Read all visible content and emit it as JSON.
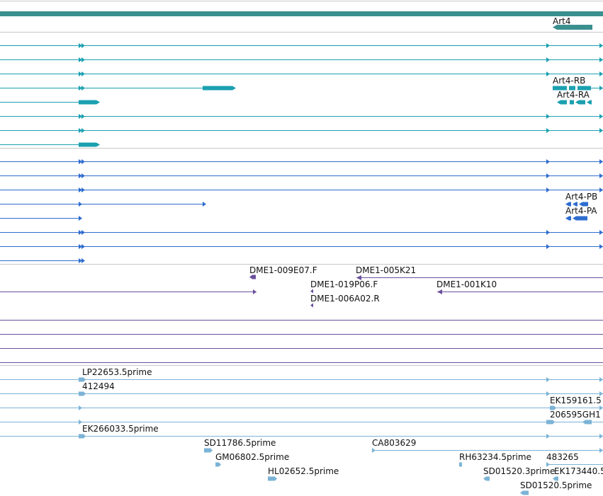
{
  "colors": {
    "gene": "#3a8f8f",
    "transcript_teal": "#1ba0b0",
    "transcript_blue": "#2f6ccf",
    "primer": "#6a4f9c",
    "est": "#7bb3d6",
    "separator": "#c8c8c8"
  },
  "gene_track": {
    "label": "Art4"
  },
  "transcript_tracks": {
    "teal_labels": [
      "Art4-RB",
      "Art4-RA"
    ],
    "blue_labels": [
      "Art4-PB",
      "Art4-PA"
    ]
  },
  "primer_track": {
    "labels": [
      "DME1-009E07.F",
      "DME1-005K21",
      "DME1-019P06.F",
      "DME1-001K10",
      "DME1-006A02.R"
    ]
  },
  "est_track": {
    "labels": [
      "LP22653.5prime",
      "412494",
      "EK159161.5",
      "206595GH1",
      "EK266033.5prime",
      "SD11786.5prime",
      "CA803629",
      "GM06802.5prime",
      "RH63234.5prime",
      "483265",
      "HL02652.5prime",
      "SD01520.3prime",
      "EK173440.5",
      "SD01520.5prime"
    ]
  }
}
